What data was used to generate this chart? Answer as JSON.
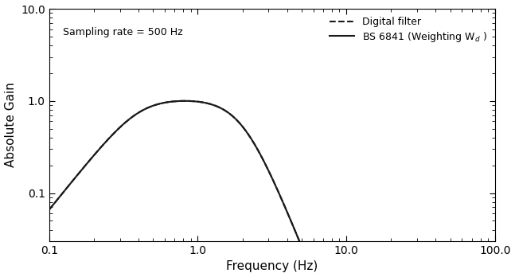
{
  "title": "",
  "xlabel": "Frequency (Hz)",
  "ylabel": "Absolute Gain",
  "annotation": "Sampling rate = 500 Hz",
  "legend_solid": "BS 6841 (Weighting W$_d$ )",
  "legend_dashed": "Digital filter",
  "xlim": [
    0.1,
    100.0
  ],
  "ylim": [
    0.03,
    10.0
  ],
  "xticks": [
    0.1,
    1.0,
    10.0,
    100.0
  ],
  "yticks": [
    0.1,
    1.0,
    10.0
  ],
  "background_color": "#ffffff",
  "line_color": "#1a1a1a",
  "linewidth": 1.5,
  "figsize": [
    6.47,
    3.48
  ],
  "dpi": 100
}
